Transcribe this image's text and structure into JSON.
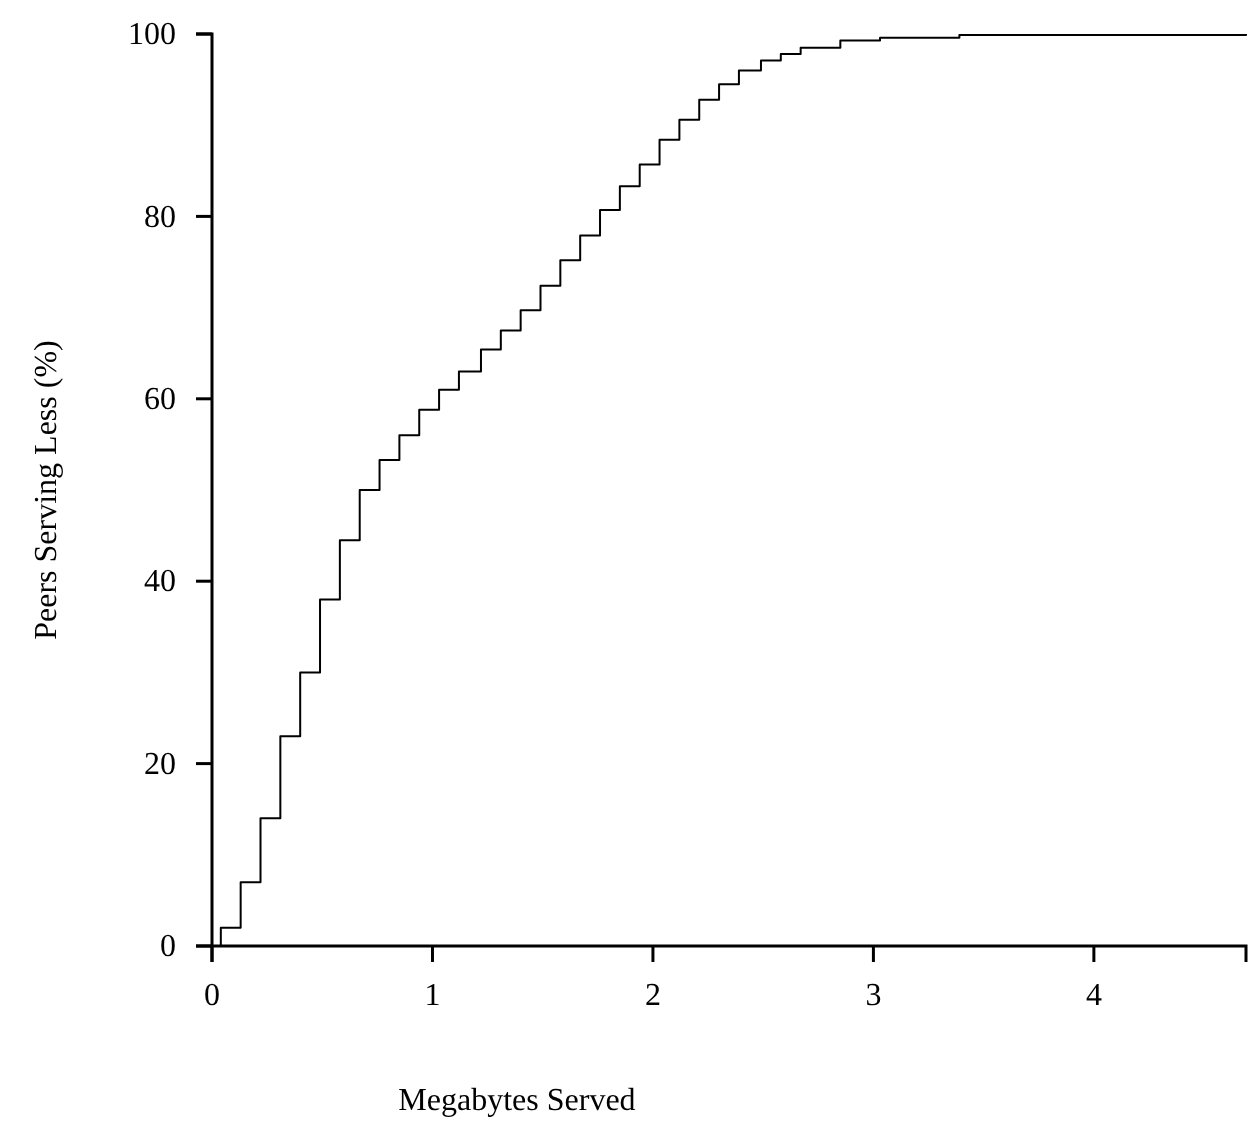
{
  "chart_data": {
    "type": "step",
    "xlabel": "Megabytes Served",
    "ylabel": "Peers Serving Less (%)",
    "x": [
      0,
      0.04,
      0.13,
      0.22,
      0.31,
      0.4,
      0.49,
      0.58,
      0.67,
      0.76,
      0.85,
      0.94,
      1.03,
      1.12,
      1.22,
      1.31,
      1.4,
      1.49,
      1.58,
      1.67,
      1.76,
      1.85,
      1.94,
      2.03,
      2.12,
      2.21,
      2.3,
      2.39,
      2.49,
      2.58,
      2.67,
      2.85,
      3.03,
      3.39,
      4.69
    ],
    "series": [
      {
        "color": "#000000",
        "values": [
          0,
          2,
          7,
          14,
          23,
          30,
          38,
          44.5,
          50,
          53.3,
          56,
          58.8,
          61,
          63,
          65.4,
          67.5,
          69.7,
          72.4,
          75.2,
          77.9,
          80.7,
          83.3,
          85.7,
          88.4,
          90.6,
          92.8,
          94.5,
          96,
          97.1,
          97.8,
          98.5,
          99.3,
          99.6,
          99.9,
          100
        ]
      }
    ],
    "xlim": [
      0,
      4.69
    ],
    "ylim": [
      0,
      100
    ],
    "xticks": [
      0,
      1,
      2,
      3,
      4
    ],
    "yticks": [
      0,
      20,
      40,
      60,
      80,
      100
    ],
    "grid": false,
    "marker": "none",
    "line_style": "solid"
  }
}
